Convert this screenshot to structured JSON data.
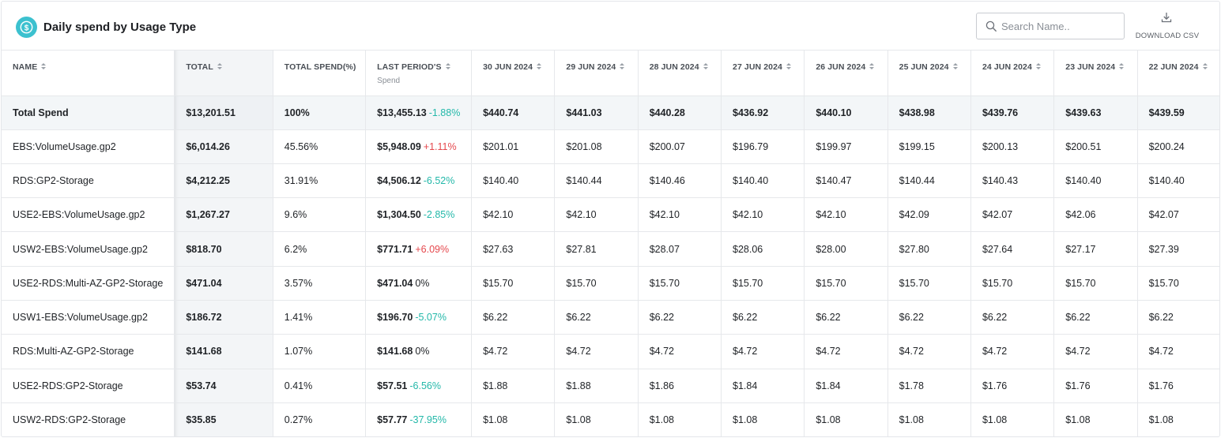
{
  "header": {
    "title": "Daily spend by Usage Type",
    "search_placeholder": "Search Name..",
    "download_label": "DOWNLOAD CSV",
    "logo_icon": "dollar-circle-icon",
    "accent_color": "#3cc1cf"
  },
  "table": {
    "columns": {
      "name": "NAME",
      "total": "TOTAL",
      "total_pct": "TOTAL SPEND(%)",
      "last_period": "LAST PERIOD'S",
      "last_period_sub": "Spend",
      "dates": [
        "30 JUN 2024",
        "29 JUN 2024",
        "28 JUN 2024",
        "27 JUN 2024",
        "26 JUN 2024",
        "25 JUN 2024",
        "24 JUN 2024",
        "23 JUN 2024",
        "22 JUN 2024"
      ]
    },
    "rows": [
      {
        "name": "Total Spend",
        "total": "$13,201.51",
        "pct": "100%",
        "last": "$13,455.13",
        "change": "-1.88%",
        "dir": "down",
        "days": [
          "$440.74",
          "$441.03",
          "$440.28",
          "$436.92",
          "$440.10",
          "$438.98",
          "$439.76",
          "$439.63",
          "$439.59"
        ]
      },
      {
        "name": "EBS:VolumeUsage.gp2",
        "total": "$6,014.26",
        "pct": "45.56%",
        "last": "$5,948.09",
        "change": "+1.11%",
        "dir": "up",
        "days": [
          "$201.01",
          "$201.08",
          "$200.07",
          "$196.79",
          "$199.97",
          "$199.15",
          "$200.13",
          "$200.51",
          "$200.24"
        ]
      },
      {
        "name": "RDS:GP2-Storage",
        "total": "$4,212.25",
        "pct": "31.91%",
        "last": "$4,506.12",
        "change": "-6.52%",
        "dir": "down",
        "days": [
          "$140.40",
          "$140.44",
          "$140.46",
          "$140.40",
          "$140.47",
          "$140.44",
          "$140.43",
          "$140.40",
          "$140.40"
        ]
      },
      {
        "name": "USE2-EBS:VolumeUsage.gp2",
        "total": "$1,267.27",
        "pct": "9.6%",
        "last": "$1,304.50",
        "change": "-2.85%",
        "dir": "down",
        "days": [
          "$42.10",
          "$42.10",
          "$42.10",
          "$42.10",
          "$42.10",
          "$42.09",
          "$42.07",
          "$42.06",
          "$42.07"
        ]
      },
      {
        "name": "USW2-EBS:VolumeUsage.gp2",
        "total": "$818.70",
        "pct": "6.2%",
        "last": "$771.71",
        "change": "+6.09%",
        "dir": "up",
        "days": [
          "$27.63",
          "$27.81",
          "$28.07",
          "$28.06",
          "$28.00",
          "$27.80",
          "$27.64",
          "$27.17",
          "$27.39"
        ]
      },
      {
        "name": "USE2-RDS:Multi-AZ-GP2-Storage",
        "total": "$471.04",
        "pct": "3.57%",
        "last": "$471.04",
        "change": "0%",
        "dir": "flat",
        "days": [
          "$15.70",
          "$15.70",
          "$15.70",
          "$15.70",
          "$15.70",
          "$15.70",
          "$15.70",
          "$15.70",
          "$15.70"
        ]
      },
      {
        "name": "USW1-EBS:VolumeUsage.gp2",
        "total": "$186.72",
        "pct": "1.41%",
        "last": "$196.70",
        "change": "-5.07%",
        "dir": "down",
        "days": [
          "$6.22",
          "$6.22",
          "$6.22",
          "$6.22",
          "$6.22",
          "$6.22",
          "$6.22",
          "$6.22",
          "$6.22"
        ]
      },
      {
        "name": "RDS:Multi-AZ-GP2-Storage",
        "total": "$141.68",
        "pct": "1.07%",
        "last": "$141.68",
        "change": "0%",
        "dir": "flat",
        "days": [
          "$4.72",
          "$4.72",
          "$4.72",
          "$4.72",
          "$4.72",
          "$4.72",
          "$4.72",
          "$4.72",
          "$4.72"
        ]
      },
      {
        "name": "USE2-RDS:GP2-Storage",
        "total": "$53.74",
        "pct": "0.41%",
        "last": "$57.51",
        "change": "-6.56%",
        "dir": "down",
        "days": [
          "$1.88",
          "$1.88",
          "$1.86",
          "$1.84",
          "$1.84",
          "$1.78",
          "$1.76",
          "$1.76",
          "$1.76"
        ]
      },
      {
        "name": "USW2-RDS:GP2-Storage",
        "total": "$35.85",
        "pct": "0.27%",
        "last": "$57.77",
        "change": "-37.95%",
        "dir": "down",
        "days": [
          "$1.08",
          "$1.08",
          "$1.08",
          "$1.08",
          "$1.08",
          "$1.08",
          "$1.08",
          "$1.08",
          "$1.08"
        ]
      }
    ]
  }
}
